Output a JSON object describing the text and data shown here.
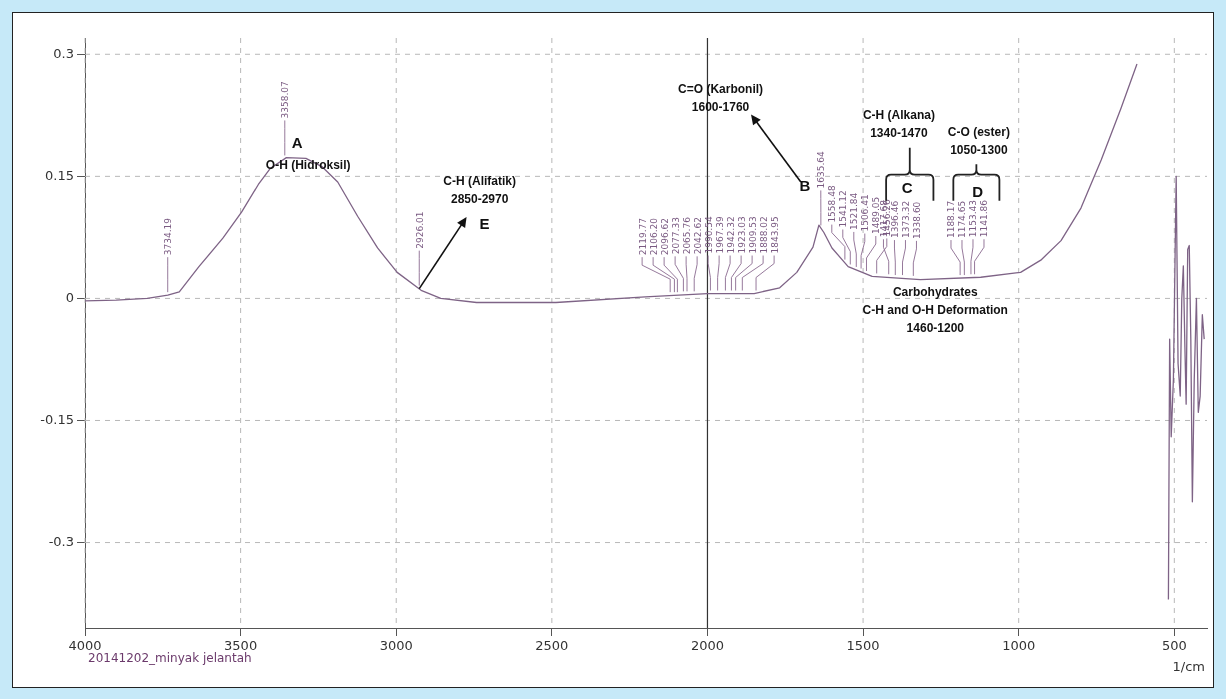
{
  "chart_data": {
    "type": "line",
    "xlabel": "1/cm",
    "color": "#7e6386",
    "marker": "none",
    "grid": true,
    "legend": false,
    "x": [
      4000,
      3900,
      3800,
      3734,
      3697,
      3634,
      3557,
      3497,
      3443,
      3404,
      3353,
      3290,
      3239,
      3188,
      3124,
      3060,
      2997,
      2920,
      2857,
      2742,
      2487,
      2200,
      2000,
      1850,
      1768,
      1713,
      1661,
      1642,
      1626,
      1600,
      1548,
      1471,
      1316,
      1122,
      994,
      929,
      864,
      800,
      735,
      671,
      620,
      587,
      550,
      520,
      519,
      515,
      510,
      503,
      494,
      488,
      481,
      476,
      471,
      466,
      462,
      457,
      452,
      447,
      442,
      436,
      429,
      423,
      417,
      410,
      404
    ],
    "values": [
      -0.003,
      -0.002,
      0.0,
      0.004,
      0.008,
      0.039,
      0.074,
      0.106,
      0.14,
      0.16,
      0.173,
      0.172,
      0.162,
      0.143,
      0.101,
      0.062,
      0.032,
      0.01,
      0.0,
      -0.005,
      -0.005,
      0.002,
      0.006,
      0.006,
      0.013,
      0.032,
      0.063,
      0.09,
      0.081,
      0.062,
      0.039,
      0.027,
      0.023,
      0.026,
      0.032,
      0.047,
      0.071,
      0.111,
      0.17,
      0.234,
      0.288,
      null,
      null,
      null,
      -0.37,
      -0.05,
      -0.17,
      -0.1,
      0.15,
      -0.08,
      -0.12,
      0.0,
      0.04,
      -0.06,
      -0.13,
      0.06,
      0.065,
      -0.05,
      -0.25,
      -0.1,
      0.0,
      -0.14,
      -0.12,
      -0.02,
      -0.05
    ],
    "xlim": [
      4000,
      395
    ],
    "xticks": [
      4000,
      3500,
      3000,
      2500,
      2000,
      1500,
      1000,
      500
    ],
    "ylim": [
      -0.405,
      0.32
    ],
    "yticks": [
      0.3,
      0.15,
      0,
      -0.15,
      -0.3
    ],
    "ref_lines": [
      {
        "axis": "x",
        "value": 2000,
        "color": "#333333"
      }
    ],
    "annotations": [
      {
        "text": "3734.19",
        "x": 3734.19,
        "y": 0.004
      },
      {
        "text": "3358.07",
        "x": 3358.07,
        "y": 0.172
      },
      {
        "text": "2926.01",
        "x": 2926.01,
        "y": 0.012
      },
      {
        "text": "2119.77",
        "x": 2119.77,
        "y": 0.004
      },
      {
        "text": "2106.20",
        "x": 2106.2,
        "y": 0.004
      },
      {
        "text": "2096.62",
        "x": 2096.62,
        "y": 0.004
      },
      {
        "text": "2077.33",
        "x": 2077.33,
        "y": 0.005
      },
      {
        "text": "2065.76",
        "x": 2065.76,
        "y": 0.005
      },
      {
        "text": "2042.62",
        "x": 2042.62,
        "y": 0.005
      },
      {
        "text": "1990.54",
        "x": 1990.54,
        "y": 0.006
      },
      {
        "text": "1967.39",
        "x": 1967.39,
        "y": 0.006
      },
      {
        "text": "1942.32",
        "x": 1942.32,
        "y": 0.006
      },
      {
        "text": "1923.03",
        "x": 1923.03,
        "y": 0.006
      },
      {
        "text": "1909.53",
        "x": 1909.53,
        "y": 0.006
      },
      {
        "text": "1888.02",
        "x": 1888.02,
        "y": 0.006
      },
      {
        "text": "1843.95",
        "x": 1843.95,
        "y": 0.006
      },
      {
        "text": "1635.64",
        "x": 1635.64,
        "y": 0.086
      },
      {
        "text": "1558.48",
        "x": 1558.48,
        "y": 0.044
      },
      {
        "text": "1541.12",
        "x": 1541.12,
        "y": 0.038
      },
      {
        "text": "1521.84",
        "x": 1521.84,
        "y": 0.035
      },
      {
        "text": "1506.41",
        "x": 1506.41,
        "y": 0.033
      },
      {
        "text": "1489.05",
        "x": 1489.05,
        "y": 0.03
      },
      {
        "text": "1456.26",
        "x": 1456.26,
        "y": 0.027
      },
      {
        "text": "1417.68",
        "x": 1417.68,
        "y": 0.026
      },
      {
        "text": "1396.46",
        "x": 1396.46,
        "y": 0.025
      },
      {
        "text": "1373.32",
        "x": 1373.32,
        "y": 0.025
      },
      {
        "text": "1338.60",
        "x": 1338.6,
        "y": 0.024
      },
      {
        "text": "1188.17",
        "x": 1188.17,
        "y": 0.025
      },
      {
        "text": "1174.65",
        "x": 1174.65,
        "y": 0.025
      },
      {
        "text": "1153.43",
        "x": 1153.43,
        "y": 0.026
      },
      {
        "text": "1141.86",
        "x": 1141.86,
        "y": 0.026
      },
      "A",
      "O-H (Hidroksil)",
      "C-H (Alifatik)\n2850-2970",
      {
        "text": "E",
        "x": 2926.01,
        "y": 0.012
      },
      "C=O (Karbonil)\n1600-1760",
      "B",
      "C-H (Alkana)\n1340-1470",
      "C",
      "C-O (ester)\n1050-1300",
      "D",
      "Carbohydrates\nC-H and O-H Deformation\n1460-1200",
      "20141202_minyak jelantah"
    ]
  }
}
